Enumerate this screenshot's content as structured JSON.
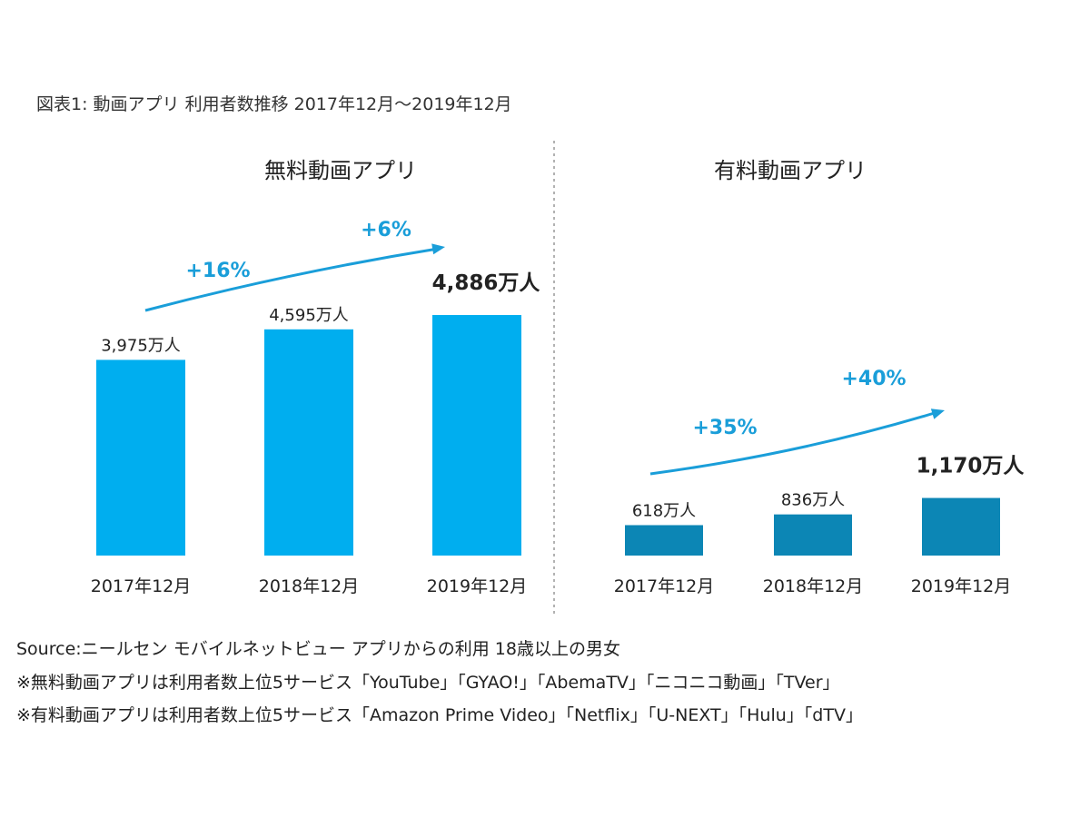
{
  "figure": {
    "title": "図表1: 動画アプリ 利用者数推移 2017年12月～2019年12月"
  },
  "chart_data": [
    {
      "type": "bar",
      "title": "無料動画アプリ",
      "categories": [
        "2017年12月",
        "2018年12月",
        "2019年12月"
      ],
      "values": [
        3975,
        4595,
        4886
      ],
      "value_labels": [
        "3,975万人",
        "4,595万人",
        "4,886万人"
      ],
      "growth_labels": [
        "+16%",
        "+6%"
      ],
      "unit": "万人",
      "ylim": [
        0,
        5200
      ],
      "color": "#00aeef",
      "grid": false
    },
    {
      "type": "bar",
      "title": "有料動画アプリ",
      "categories": [
        "2017年12月",
        "2018年12月",
        "2019年12月"
      ],
      "values": [
        618,
        836,
        1170
      ],
      "value_labels": [
        "618万人",
        "836万人",
        "1,170万人"
      ],
      "growth_labels": [
        "+35%",
        "+40%"
      ],
      "unit": "万人",
      "ylim": [
        0,
        5200
      ],
      "color": "#0c86b5",
      "grid": false
    }
  ],
  "notes": {
    "source": "Source:ニールセン モバイルネットビュー アプリからの利用 18歳以上の男女",
    "free_note": "※無料動画アプリは利用者数上位5サービス「YouTube」「GYAO!」「AbemaTV」「ニコニコ動画」「TVer」",
    "paid_note": "※有料動画アプリは利用者数上位5サービス「Amazon Prime Video」「Netflix」「U-NEXT」「Hulu」「dTV」"
  },
  "colors": {
    "arrow": "#1a9ed9",
    "growth_text": "#1a9ed9",
    "divider": "#999999"
  }
}
